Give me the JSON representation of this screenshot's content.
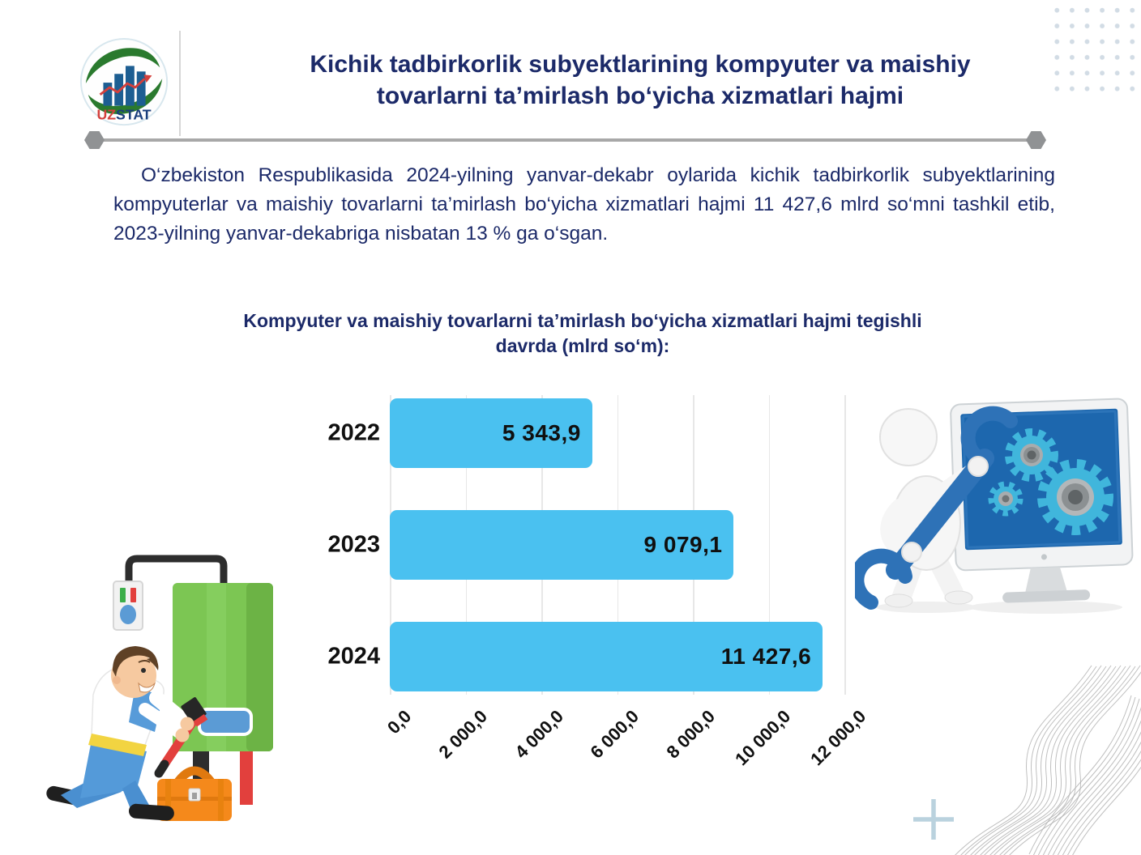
{
  "logo": {
    "uz": "UZ",
    "stat": "STAT"
  },
  "header": {
    "title_lines": [
      "Kichik tadbirkorlik subyektlarining kompyuter va maishiy",
      "tovarlarni ta’mirlash bo‘yicha xizmatlari hajmi"
    ]
  },
  "intro": {
    "text": "O‘zbekiston Respublikasida 2024-yilning yanvar-dekabr oylarida kichik tadbirkorlik subyektlarining kompyuterlar va maishiy tovarlarni ta’mirlash bo‘yicha xizmatlari hajmi 11 427,6 mlrd so‘mni tashkil etib, 2023-yilning yanvar-dekabriga nisbatan 13 % ga o‘sgan."
  },
  "chart_data": {
    "type": "bar",
    "orientation": "horizontal",
    "title": "Kompyuter va maishiy tovarlarni ta’mirlash bo‘yicha xizmatlari hajmi tegishli davrda (mlrd so‘m):",
    "title_lines": [
      "Kompyuter va maishiy tovarlarni ta’mirlash bo‘yicha xizmatlari hajmi tegishli",
      "davrda (mlrd so‘m):"
    ],
    "categories": [
      "2022",
      "2023",
      "2024"
    ],
    "values": [
      5343.9,
      9079.1,
      11427.6
    ],
    "value_labels": [
      "5 343,9",
      "9 079,1",
      "11 427,6"
    ],
    "x_ticks": [
      "0,0",
      "2 000,0",
      "4 000,0",
      "6 000,0",
      "8 000,0",
      "10 000,0",
      "12 000,0"
    ],
    "xlim": [
      0,
      12000
    ],
    "xlabel": "",
    "ylabel": "",
    "unit": "mlrd so‘m",
    "grid": true,
    "legend": false,
    "bar_color": "#4ac1f0"
  },
  "colors": {
    "navy_text": "#1c2a69",
    "bar_blue": "#4ac1f0",
    "grid_gray": "#e7e7e7",
    "divider_gray": "#a8a8a8"
  }
}
